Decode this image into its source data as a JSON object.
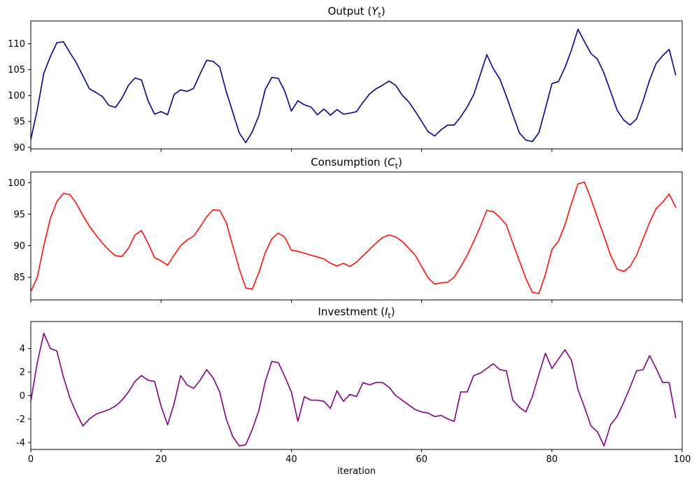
{
  "figure": {
    "background": "#ffffff"
  },
  "chart_data": {
    "type": "line",
    "xlabel": "iteration",
    "xticks": [
      0,
      20,
      40,
      60,
      80,
      100
    ],
    "xlim": [
      0,
      100
    ],
    "n_points": 100,
    "grid": false,
    "legend": "none",
    "charts": [
      {
        "id": "output",
        "title": {
          "prefix": "Output (",
          "symbol": "Y",
          "subscript": "t",
          "suffix": ")"
        },
        "color": "#00008B",
        "ylim": [
          89.7,
          114.4
        ],
        "yticks": [
          90,
          95,
          100,
          105,
          110
        ],
        "values": [
          91.5,
          97.3,
          104.3,
          107.5,
          110.2,
          110.4,
          108.3,
          106.3,
          103.8,
          101.3,
          100.6,
          99.8,
          98.1,
          97.7,
          99.5,
          102.0,
          103.4,
          103.0,
          99.0,
          96.4,
          96.9,
          96.3,
          100.2,
          101.1,
          100.8,
          101.4,
          104.2,
          106.8,
          106.6,
          105.5,
          100.8,
          96.8,
          92.8,
          90.9,
          93.0,
          96.1,
          101.2,
          103.5,
          103.3,
          100.8,
          97.0,
          99.0,
          98.2,
          97.8,
          96.3,
          97.4,
          96.2,
          97.3,
          96.4,
          96.6,
          96.9,
          98.7,
          100.3,
          101.3,
          102.0,
          102.8,
          102.0,
          100.1,
          98.8,
          97.0,
          95.0,
          93.0,
          92.2,
          93.4,
          94.3,
          94.3,
          95.9,
          97.8,
          100.2,
          104.0,
          107.9,
          105.2,
          103.2,
          99.9,
          96.3,
          92.8,
          91.4,
          91.1,
          92.8,
          97.5,
          102.3,
          102.7,
          105.4,
          108.8,
          112.8,
          110.4,
          108.1,
          107.0,
          104.3,
          100.8,
          97.2,
          95.3,
          94.3,
          95.5,
          99.0,
          103.0,
          106.2,
          107.7,
          108.9,
          104.0
        ]
      },
      {
        "id": "consumption",
        "title": {
          "prefix": "Consumption (",
          "symbol": "C",
          "subscript": "t",
          "suffix": ")"
        },
        "color": "#FF0F0A",
        "ylim": [
          81.4,
          101.7
        ],
        "yticks": [
          85,
          90,
          95,
          100
        ],
        "values": [
          82.7,
          85.0,
          90.0,
          94.3,
          97.0,
          98.3,
          98.1,
          96.7,
          94.8,
          93.1,
          91.7,
          90.4,
          89.3,
          88.4,
          88.3,
          89.6,
          91.7,
          92.4,
          90.4,
          88.1,
          87.6,
          86.9,
          88.5,
          90.0,
          90.9,
          91.5,
          93.0,
          94.6,
          95.7,
          95.6,
          93.7,
          90.0,
          86.3,
          83.3,
          83.1,
          85.7,
          88.9,
          91.1,
          92.0,
          91.3,
          89.3,
          89.1,
          88.8,
          88.5,
          88.2,
          87.9,
          87.2,
          86.8,
          87.2,
          86.7,
          87.4,
          88.4,
          89.4,
          90.4,
          91.3,
          91.7,
          91.4,
          90.7,
          89.6,
          88.5,
          86.7,
          84.9,
          83.9,
          84.1,
          84.2,
          85.0,
          86.7,
          88.5,
          90.7,
          93.0,
          95.6,
          95.4,
          94.5,
          93.3,
          90.4,
          87.6,
          84.8,
          82.6,
          82.4,
          85.4,
          89.4,
          90.7,
          93.3,
          96.7,
          99.8,
          100.1,
          97.4,
          94.4,
          91.5,
          88.5,
          86.3,
          85.9,
          86.7,
          88.5,
          91.1,
          93.7,
          95.9,
          96.9,
          98.2,
          96.1
        ]
      },
      {
        "id": "investment",
        "title": {
          "prefix": "Investment (",
          "symbol": "I",
          "subscript": "t",
          "suffix": ")"
        },
        "color": "#800080",
        "ylim": [
          -4.6,
          6.3
        ],
        "yticks": [
          -4,
          -2,
          0,
          2,
          4
        ],
        "values": [
          -0.5,
          2.8,
          5.3,
          4.0,
          3.8,
          1.6,
          -0.2,
          -1.5,
          -2.6,
          -2.0,
          -1.6,
          -1.4,
          -1.2,
          -0.9,
          -0.4,
          0.3,
          1.2,
          1.7,
          1.3,
          1.2,
          -0.9,
          -2.5,
          -0.7,
          1.7,
          0.9,
          0.6,
          1.3,
          2.2,
          1.5,
          0.3,
          -2.0,
          -3.5,
          -4.3,
          -4.2,
          -2.9,
          -1.3,
          1.2,
          2.9,
          2.8,
          1.6,
          0.3,
          -2.2,
          -0.1,
          -0.4,
          -0.4,
          -0.5,
          -1.1,
          0.4,
          -0.5,
          0.1,
          -0.1,
          1.1,
          0.9,
          1.1,
          1.1,
          0.7,
          0.0,
          -0.4,
          -0.8,
          -1.2,
          -1.4,
          -1.5,
          -1.8,
          -1.7,
          -2.0,
          -2.2,
          0.3,
          0.3,
          1.7,
          1.9,
          2.3,
          2.7,
          2.2,
          2.1,
          -0.4,
          -1.0,
          -1.4,
          -0.1,
          1.8,
          3.6,
          2.3,
          3.1,
          3.9,
          3.0,
          0.5,
          -1.0,
          -2.6,
          -3.1,
          -4.3,
          -2.5,
          -1.8,
          -0.6,
          0.7,
          2.1,
          2.2,
          3.4,
          2.3,
          1.1,
          1.1,
          -1.9
        ]
      }
    ]
  }
}
